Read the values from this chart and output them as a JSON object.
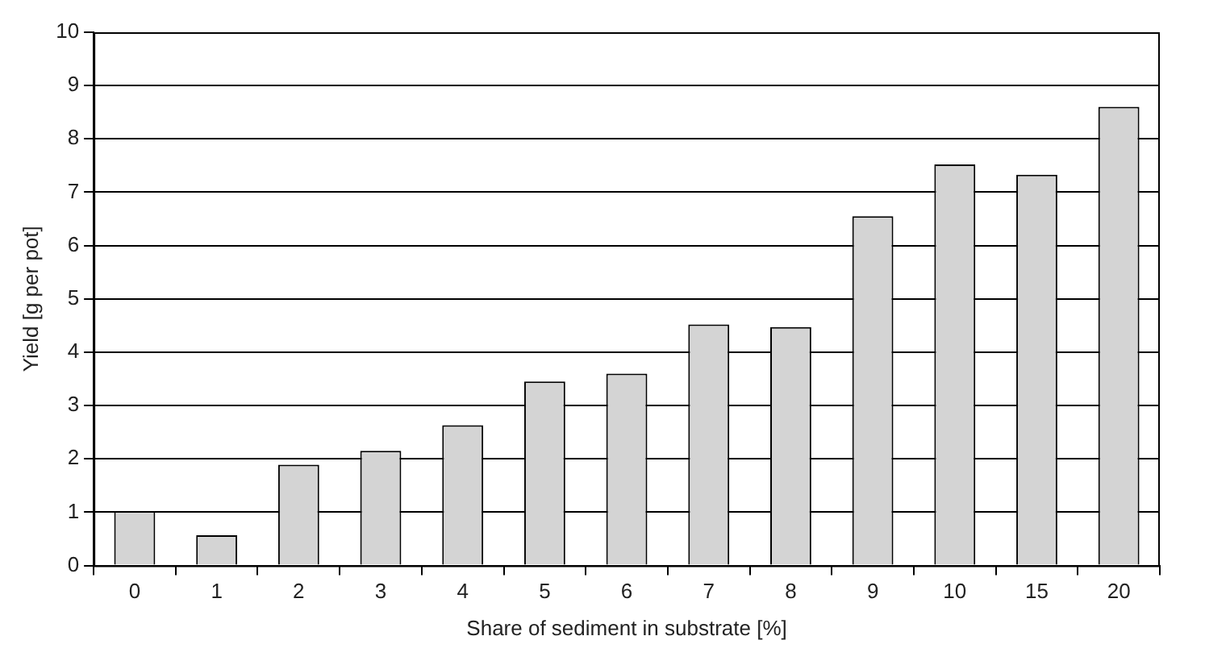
{
  "chart_data": {
    "type": "bar",
    "xlabel": "Share of sediment in substrate [%]",
    "ylabel": "Yield [g per pot]",
    "categories": [
      "0",
      "1",
      "2",
      "3",
      "4",
      "5",
      "6",
      "7",
      "8",
      "9",
      "10",
      "15",
      "20"
    ],
    "values": [
      1.02,
      0.57,
      1.89,
      2.15,
      2.63,
      3.45,
      3.6,
      4.52,
      4.47,
      6.55,
      7.52,
      7.33,
      8.6
    ],
    "color": "#d4d4d4",
    "ylim": [
      0,
      10
    ],
    "yticks": [
      0,
      1,
      2,
      3,
      4,
      5,
      6,
      7,
      8,
      9,
      10
    ],
    "grid": "y",
    "legend": false
  }
}
